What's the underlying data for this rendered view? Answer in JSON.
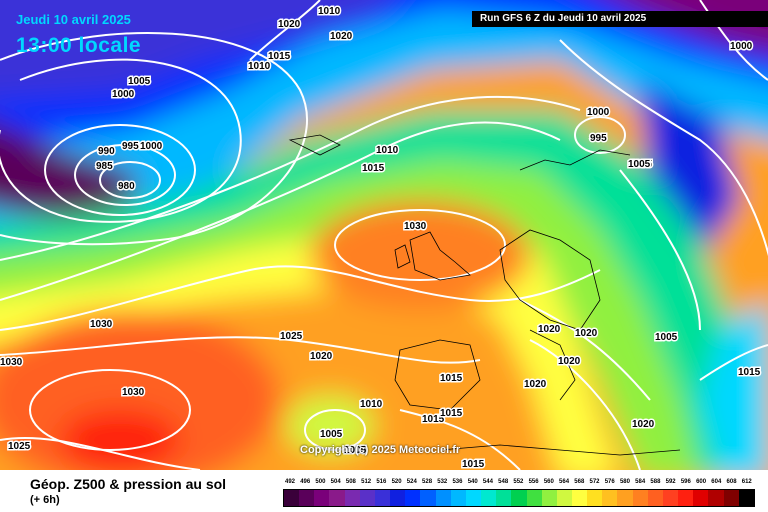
{
  "header": {
    "date_text": "Jeudi 10 avril 2025",
    "time_text": "13:00 locale",
    "run_text": "Run GFS 6 Z du Jeudi 10 avril 2025"
  },
  "map": {
    "copyright": "Copyright (c) 2025 Meteociel.fr",
    "isobar_labels": [
      "1020",
      "1010",
      "1020",
      "1015",
      "1010",
      "1005",
      "1000",
      "995",
      "990",
      "985",
      "980",
      "1000",
      "1010",
      "1015",
      "1030",
      "1030",
      "1030",
      "1025",
      "1020",
      "1030",
      "1025",
      "1015",
      "1010",
      "1005",
      "1005",
      "1015",
      "1015",
      "1020",
      "1020",
      "1020",
      "1020",
      "1015",
      "1005",
      "1005",
      "1000",
      "995",
      "1000",
      "1005",
      "1015",
      "1020"
    ],
    "accent_colors": {
      "cold": "#7a0a8a",
      "mid": "#00c8c8",
      "warm": "#ff5a0a",
      "isobar": "#ffffff"
    }
  },
  "legend": {
    "title": "Géop. Z500 & pression au sol",
    "subtitle": "(+ 6h)",
    "scale_values": [
      "492",
      "496",
      "500",
      "504",
      "508",
      "512",
      "516",
      "520",
      "524",
      "528",
      "532",
      "536",
      "540",
      "544",
      "548",
      "552",
      "556",
      "560",
      "564",
      "568",
      "572",
      "576",
      "580",
      "584",
      "588",
      "592",
      "596",
      "600",
      "604",
      "608",
      "612"
    ],
    "scale_colors": [
      "#3a003a",
      "#5a005a",
      "#7a007a",
      "#8a1a8a",
      "#7a2ab0",
      "#5a30c8",
      "#3a30d8",
      "#1020e0",
      "#0030ff",
      "#0060ff",
      "#0090ff",
      "#00b8ff",
      "#00d8ff",
      "#00e8d0",
      "#00e098",
      "#00d050",
      "#40e040",
      "#90f040",
      "#d0f840",
      "#ffff40",
      "#ffe020",
      "#ffc020",
      "#ffa020",
      "#ff8020",
      "#ff6020",
      "#ff4020",
      "#ff2010",
      "#e00000",
      "#b00000",
      "#800000",
      "#000000"
    ]
  }
}
